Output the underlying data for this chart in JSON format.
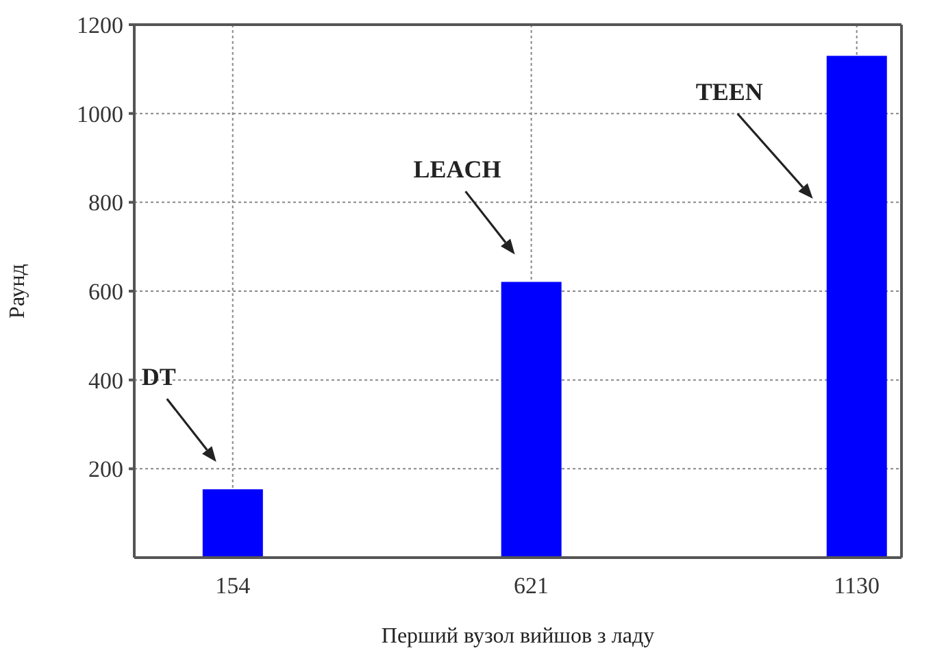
{
  "chart_data": {
    "type": "bar",
    "x": [
      154,
      621,
      1130
    ],
    "values": [
      154,
      621,
      1130
    ],
    "color": "#0000ff",
    "xlim": [
      0,
      1200
    ],
    "xticks": [
      154,
      621,
      1130
    ],
    "ylim": [
      0,
      1200
    ],
    "yticks": [
      200,
      400,
      600,
      800,
      1000,
      1200
    ],
    "xlabel": "Перший вузол вийшов з ладу",
    "ylabel": "Раунд",
    "grid": true,
    "annotations": [
      "DT",
      "LEACH",
      "TEEN"
    ]
  }
}
